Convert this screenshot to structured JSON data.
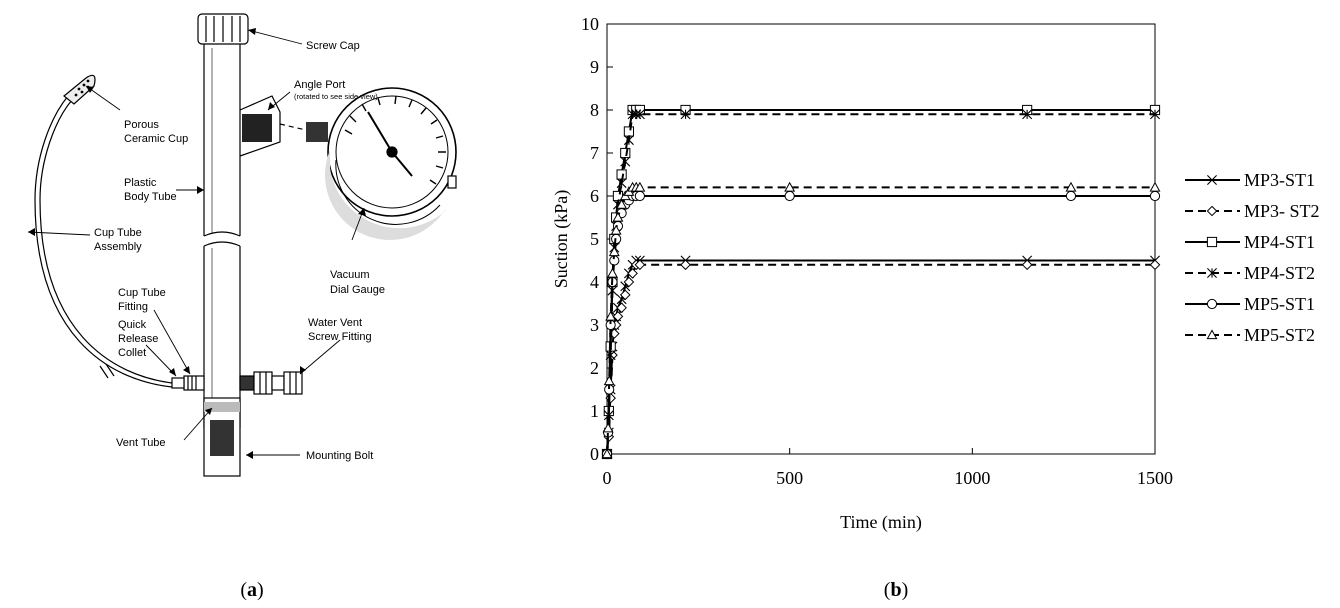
{
  "panel_a": {
    "label_open": "(",
    "label_letter": "a",
    "label_close": ")",
    "callouts": {
      "screw_cap": "Screw Cap",
      "angle_port": "Angle Port",
      "angle_port_note": "(rotated to see side view)",
      "porous_1": "Porous",
      "porous_2": "Ceramic Cup",
      "plastic_1": "Plastic",
      "plastic_2": "Body Tube",
      "cup_tube_1": "Cup Tube",
      "cup_tube_2": "Assembly",
      "vacuum_1": "Vacuum",
      "vacuum_2": "Dial Gauge",
      "fitting_1": "Cup Tube",
      "fitting_2": "Fitting",
      "quick_1": "Quick",
      "quick_2": "Release",
      "quick_3": "Collet",
      "water_1": "Water Vent",
      "water_2": "Screw Fitting",
      "vent_tube": "Vent Tube",
      "mounting_bolt": "Mounting Bolt"
    }
  },
  "panel_b": {
    "label_open": "(",
    "label_letter": "b",
    "label_close": ")"
  },
  "chart_data": {
    "type": "line",
    "title": "",
    "xlabel": "Time (min)",
    "ylabel": "Suction (kPa)",
    "xlim": [
      0,
      1500
    ],
    "ylim": [
      0,
      10
    ],
    "x_ticks": [
      "0",
      "500",
      "1000",
      "1500"
    ],
    "y_ticks": [
      "0",
      "1",
      "2",
      "3",
      "4",
      "5",
      "6",
      "7",
      "8",
      "9",
      "10"
    ],
    "grid": false,
    "legend_position": "right",
    "series": [
      {
        "name": "MP3-ST1",
        "line": "solid",
        "marker": "x",
        "x": [
          0,
          5,
          10,
          15,
          20,
          25,
          30,
          40,
          50,
          60,
          70,
          80,
          90,
          215,
          1150,
          1500
        ],
        "y": [
          0,
          0.5,
          1.5,
          2.5,
          3.0,
          3.2,
          3.4,
          3.6,
          3.9,
          4.2,
          4.4,
          4.5,
          4.5,
          4.5,
          4.5,
          4.5
        ]
      },
      {
        "name": "MP3- ST2",
        "line": "dashed",
        "marker": "diamond",
        "x": [
          0,
          5,
          10,
          15,
          20,
          25,
          30,
          40,
          50,
          60,
          70,
          80,
          90,
          215,
          1150,
          1500
        ],
        "y": [
          0,
          0.4,
          1.3,
          2.3,
          2.8,
          3.0,
          3.2,
          3.4,
          3.7,
          4.0,
          4.2,
          4.4,
          4.4,
          4.4,
          4.4,
          4.4
        ]
      },
      {
        "name": "MP4-ST1",
        "line": "solid",
        "marker": "square",
        "x": [
          0,
          5,
          10,
          15,
          20,
          25,
          30,
          40,
          50,
          60,
          70,
          80,
          90,
          215,
          1150,
          1500
        ],
        "y": [
          0,
          1.0,
          2.5,
          4.0,
          5.0,
          5.5,
          6.0,
          6.5,
          7.0,
          7.5,
          8.0,
          8.0,
          8.0,
          8.0,
          8.0,
          8.0
        ]
      },
      {
        "name": "MP4-ST2",
        "line": "dashed",
        "marker": "asterisk",
        "x": [
          0,
          5,
          10,
          15,
          20,
          25,
          30,
          40,
          50,
          60,
          70,
          80,
          90,
          215,
          1150,
          1500
        ],
        "y": [
          0,
          0.9,
          2.3,
          3.8,
          4.8,
          5.3,
          5.8,
          6.3,
          6.8,
          7.3,
          7.9,
          7.9,
          7.9,
          7.9,
          7.9,
          7.9
        ]
      },
      {
        "name": "MP5-ST1",
        "line": "solid",
        "marker": "circle",
        "x": [
          0,
          3,
          6,
          10,
          15,
          20,
          25,
          30,
          40,
          50,
          60,
          70,
          80,
          90,
          500,
          1270,
          1500
        ],
        "y": [
          0,
          0.5,
          1.5,
          3.0,
          4.0,
          4.5,
          5.0,
          5.3,
          5.6,
          5.8,
          5.9,
          6.0,
          6.0,
          6.0,
          6.0,
          6.0,
          6.0
        ]
      },
      {
        "name": "MP5-ST2",
        "line": "dashed",
        "marker": "triangle",
        "x": [
          0,
          3,
          6,
          10,
          15,
          20,
          25,
          30,
          40,
          50,
          60,
          70,
          80,
          90,
          500,
          1270,
          1500
        ],
        "y": [
          0,
          0.6,
          1.7,
          3.2,
          4.2,
          4.7,
          5.2,
          5.5,
          5.8,
          6.0,
          6.1,
          6.2,
          6.2,
          6.2,
          6.2,
          6.2,
          6.2
        ]
      }
    ]
  }
}
